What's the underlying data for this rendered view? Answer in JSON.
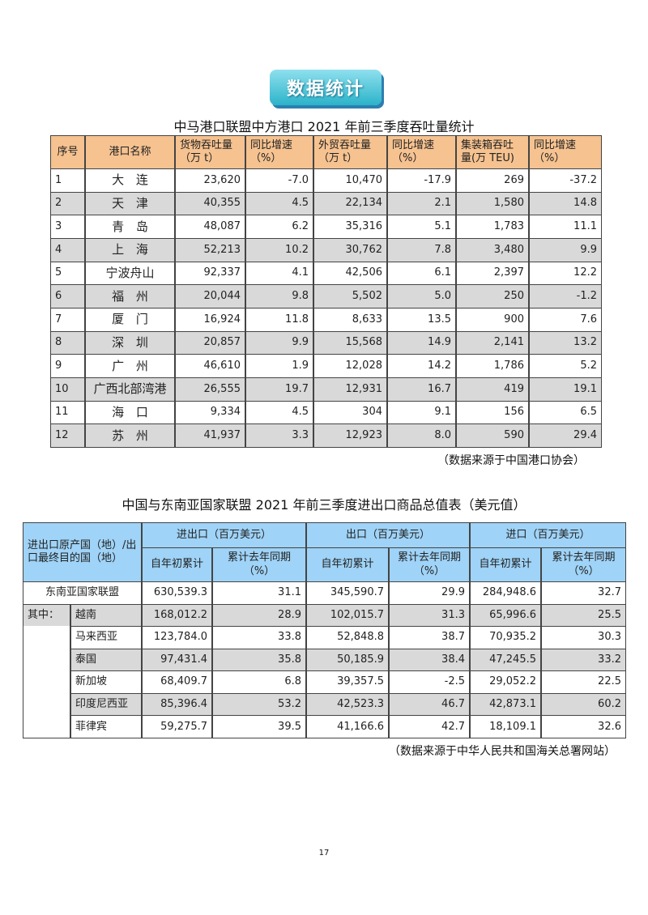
{
  "badge": "数据统计",
  "table1": {
    "title": "中马港口联盟中方港口 2021 年前三季度吞吐量统计",
    "header": [
      "序号",
      "港口名称",
      "货物吞吐量\n（万 t）",
      "同比增速\n（%）",
      "外贸吞吐量\n（万 t）",
      "同比增速\n（%）",
      "集装箱吞吐\n量(万 TEU)",
      "同比增速\n（%）"
    ],
    "rows": [
      [
        "1",
        "大 连",
        "23,620",
        "-7.0",
        "10,470",
        "-17.9",
        "269",
        "-37.2"
      ],
      [
        "2",
        "天 津",
        "40,355",
        "4.5",
        "22,134",
        "2.1",
        "1,580",
        "14.8"
      ],
      [
        "3",
        "青 岛",
        "48,087",
        "6.2",
        "35,316",
        "5.1",
        "1,783",
        "11.1"
      ],
      [
        "4",
        "上 海",
        "52,213",
        "10.2",
        "30,762",
        "7.8",
        "3,480",
        "9.9"
      ],
      [
        "5",
        "宁波舟山",
        "92,337",
        "4.1",
        "42,506",
        "6.1",
        "2,397",
        "12.2"
      ],
      [
        "6",
        "福 州",
        "20,044",
        "9.8",
        "5,502",
        "5.0",
        "250",
        "-1.2"
      ],
      [
        "7",
        "厦 门",
        "16,924",
        "11.8",
        "8,633",
        "13.5",
        "900",
        "7.6"
      ],
      [
        "8",
        "深 圳",
        "20,857",
        "9.9",
        "15,568",
        "14.9",
        "2,141",
        "13.2"
      ],
      [
        "9",
        "广 州",
        "46,610",
        "1.9",
        "12,028",
        "14.2",
        "1,786",
        "5.2"
      ],
      [
        "10",
        "广西北部湾港",
        "26,555",
        "19.7",
        "12,931",
        "16.7",
        "419",
        "19.1"
      ],
      [
        "11",
        "海 口",
        "9,334",
        "4.5",
        "304",
        "9.1",
        "156",
        "6.5"
      ],
      [
        "12",
        "苏 州",
        "41,937",
        "3.3",
        "12,923",
        "8.0",
        "590",
        "29.4"
      ]
    ],
    "source": "（数据来源于中国港口协会）"
  },
  "table2": {
    "title": "中国与东南亚国家联盟 2021 年前三季度进出口商品总值表（美元值）",
    "corner": "进出口原产国（地）/出口最终目的国（地）",
    "groups": [
      "进出口（百万美元）",
      "出口（百万美元）",
      "进口（百万美元）"
    ],
    "subheader": [
      "自年初累计",
      "累计去年同期\n（%）",
      "自年初累计",
      "累计去年同期\n（%）",
      "自年初累计",
      "累计去年同期\n（%）"
    ],
    "subgroup_label": "其中：",
    "rows": [
      {
        "name": "东南亚国家联盟",
        "values": [
          "630,539.3",
          "31.1",
          "345,590.7",
          "29.9",
          "284,948.6",
          "32.7"
        ]
      },
      {
        "name": "越南",
        "values": [
          "168,012.2",
          "28.9",
          "102,015.7",
          "31.3",
          "65,996.6",
          "25.5"
        ]
      },
      {
        "name": "马来西亚",
        "values": [
          "123,784.0",
          "33.8",
          "52,848.8",
          "38.7",
          "70,935.2",
          "30.3"
        ]
      },
      {
        "name": "泰国",
        "values": [
          "97,431.4",
          "35.8",
          "50,185.9",
          "38.4",
          "47,245.5",
          "33.2"
        ]
      },
      {
        "name": "新加坡",
        "values": [
          "68,409.7",
          "6.8",
          "39,357.5",
          "-2.5",
          "29,052.2",
          "22.5"
        ]
      },
      {
        "name": "印度尼西亚",
        "values": [
          "85,396.4",
          "53.2",
          "42,523.3",
          "46.7",
          "42,873.1",
          "60.2"
        ]
      },
      {
        "name": "菲律宾",
        "values": [
          "59,275.7",
          "39.5",
          "41,166.6",
          "42.7",
          "18,109.1",
          "32.6"
        ]
      }
    ],
    "source": "（数据来源于中华人民共和国海关总署网站）"
  },
  "page_number": "17"
}
